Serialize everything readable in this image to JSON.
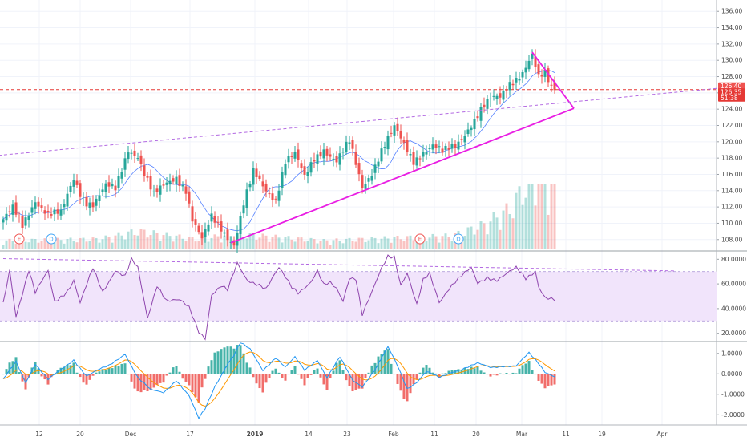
{
  "colors": {
    "up": "#26a69a",
    "down": "#ef5350",
    "trendline": "#e91ee3",
    "dashed": "#b36ae2",
    "rsi_line": "#8e44ad",
    "rsi_band": "#f1e4fb",
    "macd": "#2196f3",
    "signal": "#ff9800",
    "price_line": "#e53935",
    "earnings_badge": "#ef5350",
    "dividend_badge": "#42a5f5"
  },
  "chart_data": [
    {
      "type": "candlestick",
      "panel": "price",
      "y_ticks": [
        "136.00",
        "134.00",
        "132.00",
        "130.00",
        "128.00",
        "126.00",
        "124.00",
        "122.00",
        "120.00",
        "118.00",
        "116.00",
        "114.00",
        "112.00",
        "110.00",
        "108.00"
      ],
      "ylim": [
        106.6,
        137.4
      ],
      "x_ticks": [
        "12",
        "20",
        "Dec",
        "17",
        "2019",
        "14",
        "23",
        "Feb",
        "11",
        "20",
        "Mar",
        "11",
        "19",
        "Apr"
      ],
      "price_tags": [
        {
          "label": "126.40",
          "color": "#ef5350"
        },
        {
          "label": "126.35",
          "color": "#e53935"
        },
        {
          "label": "51:38",
          "color": "#e53935"
        }
      ],
      "price_line_value": 126.4,
      "events": [
        {
          "label": "E",
          "kind": "earnings",
          "x": 5
        },
        {
          "label": "D",
          "kind": "dividend",
          "x": 15
        },
        {
          "label": "E",
          "kind": "earnings",
          "x": 130
        },
        {
          "label": "D",
          "kind": "dividend",
          "x": 142
        }
      ],
      "trendlines": [
        {
          "style": "solid",
          "points": [
            [
              71,
              107.6
            ],
            [
              178,
              124.1
            ]
          ]
        },
        {
          "style": "solid",
          "points": [
            [
              165,
              131.0
            ],
            [
              178,
              124.1
            ]
          ]
        },
        {
          "style": "dashed",
          "points": [
            [
              -5,
              118.2
            ],
            [
              224,
              126.6
            ]
          ]
        }
      ],
      "n_bars": 173,
      "close_anchors": [
        [
          0,
          110.5
        ],
        [
          3,
          111.6
        ],
        [
          6,
          109.5
        ],
        [
          10,
          113.0
        ],
        [
          14,
          111.3
        ],
        [
          18,
          111.0
        ],
        [
          22,
          115.4
        ],
        [
          25,
          113.0
        ],
        [
          28,
          112.5
        ],
        [
          32,
          114.4
        ],
        [
          35,
          114.0
        ],
        [
          39,
          119.2
        ],
        [
          42,
          118.5
        ],
        [
          44,
          116.2
        ],
        [
          47,
          113.2
        ],
        [
          51,
          114.8
        ],
        [
          54,
          115.8
        ],
        [
          57,
          114.3
        ],
        [
          59,
          110.5
        ],
        [
          62,
          107.8
        ],
        [
          65,
          110.6
        ],
        [
          68,
          109.5
        ],
        [
          72,
          107.6
        ],
        [
          75,
          112.3
        ],
        [
          78,
          116.0
        ],
        [
          82,
          114.0
        ],
        [
          85,
          113.2
        ],
        [
          88,
          117.8
        ],
        [
          91,
          118.3
        ],
        [
          94,
          115.4
        ],
        [
          97,
          118.0
        ],
        [
          100,
          119.3
        ],
        [
          104,
          117.6
        ],
        [
          108,
          119.8
        ],
        [
          112,
          114.5
        ],
        [
          115,
          116.5
        ],
        [
          118,
          119.0
        ],
        [
          122,
          121.5
        ],
        [
          125,
          119.5
        ],
        [
          128,
          117.8
        ],
        [
          131,
          119.0
        ],
        [
          134,
          119.5
        ],
        [
          137,
          118.5
        ],
        [
          141,
          119.5
        ],
        [
          145,
          121.8
        ],
        [
          149,
          123.8
        ],
        [
          152,
          125.0
        ],
        [
          155,
          125.4
        ],
        [
          158,
          127.4
        ],
        [
          162,
          128.6
        ],
        [
          165,
          130.4
        ],
        [
          167,
          127.6
        ],
        [
          169,
          128.2
        ],
        [
          171,
          126.8
        ],
        [
          172,
          126.35
        ]
      ],
      "volume_anchors": [
        [
          0,
          1.0
        ],
        [
          30,
          1.2
        ],
        [
          42,
          2.2
        ],
        [
          60,
          1.2
        ],
        [
          73,
          1.8
        ],
        [
          100,
          1.0
        ],
        [
          140,
          1.6
        ],
        [
          150,
          3.0
        ],
        [
          158,
          5.0
        ],
        [
          164,
          8.5
        ],
        [
          168,
          9.0
        ],
        [
          172,
          8.5
        ]
      ]
    },
    {
      "type": "line",
      "panel": "rsi",
      "y_ticks": [
        "80.0000",
        "60.0000",
        "40.0000",
        "20.0000"
      ],
      "ylim": [
        13.3,
        86.7
      ],
      "band": [
        30,
        70
      ],
      "dashed_trendline": [
        [
          0,
          80.5
        ],
        [
          210,
          70.5
        ]
      ],
      "anchors": [
        [
          0,
          44
        ],
        [
          2,
          72
        ],
        [
          4,
          35
        ],
        [
          8,
          71
        ],
        [
          10,
          52
        ],
        [
          14,
          70
        ],
        [
          16,
          46
        ],
        [
          20,
          55
        ],
        [
          22,
          63
        ],
        [
          24,
          44
        ],
        [
          28,
          72
        ],
        [
          31,
          54
        ],
        [
          35,
          72
        ],
        [
          38,
          66
        ],
        [
          40,
          79
        ],
        [
          42,
          72
        ],
        [
          45,
          32
        ],
        [
          48,
          60
        ],
        [
          51,
          47
        ],
        [
          55,
          46
        ],
        [
          58,
          40
        ],
        [
          61,
          22
        ],
        [
          63,
          17
        ],
        [
          65,
          52
        ],
        [
          68,
          58
        ],
        [
          70,
          54
        ],
        [
          73,
          76
        ],
        [
          76,
          64
        ],
        [
          80,
          60
        ],
        [
          82,
          56
        ],
        [
          86,
          72
        ],
        [
          90,
          58
        ],
        [
          92,
          54
        ],
        [
          96,
          62
        ],
        [
          98,
          70
        ],
        [
          100,
          58
        ],
        [
          102,
          60
        ],
        [
          104,
          56
        ],
        [
          106,
          47
        ],
        [
          108,
          66
        ],
        [
          110,
          65
        ],
        [
          112,
          35
        ],
        [
          115,
          52
        ],
        [
          118,
          72
        ],
        [
          120,
          83
        ],
        [
          122,
          83
        ],
        [
          124,
          60
        ],
        [
          126,
          69
        ],
        [
          129,
          42
        ],
        [
          131,
          62
        ],
        [
          133,
          68
        ],
        [
          136,
          46
        ],
        [
          139,
          57
        ],
        [
          141,
          62
        ],
        [
          143,
          66
        ],
        [
          146,
          72
        ],
        [
          148,
          60
        ],
        [
          151,
          66
        ],
        [
          154,
          64
        ],
        [
          157,
          68
        ],
        [
          160,
          72
        ],
        [
          163,
          64
        ],
        [
          166,
          71
        ],
        [
          167,
          59
        ],
        [
          169,
          50
        ],
        [
          172,
          47
        ]
      ]
    },
    {
      "type": "histogram+lines",
      "panel": "macd",
      "y_ticks": [
        "1.0000",
        "0.0000",
        "-1.0000",
        "-2.0000"
      ],
      "ylim": [
        -2.5,
        1.58
      ],
      "macd_anchors": [
        [
          0,
          -0.3
        ],
        [
          4,
          0.6
        ],
        [
          7,
          -0.4
        ],
        [
          10,
          0.5
        ],
        [
          14,
          -0.3
        ],
        [
          18,
          0.2
        ],
        [
          22,
          0.7
        ],
        [
          26,
          -0.1
        ],
        [
          30,
          0.2
        ],
        [
          33,
          0.4
        ],
        [
          38,
          1.0
        ],
        [
          42,
          -0.2
        ],
        [
          46,
          -0.8
        ],
        [
          50,
          -0.9
        ],
        [
          54,
          -0.3
        ],
        [
          58,
          -1.1
        ],
        [
          61,
          -2.2
        ],
        [
          63,
          -1.7
        ],
        [
          66,
          -0.6
        ],
        [
          70,
          0.5
        ],
        [
          72,
          0.9
        ],
        [
          74,
          1.5
        ],
        [
          77,
          1.2
        ],
        [
          81,
          0.2
        ],
        [
          85,
          0.8
        ],
        [
          88,
          0.3
        ],
        [
          91,
          0.8
        ],
        [
          94,
          0.2
        ],
        [
          98,
          0.7
        ],
        [
          101,
          -0.2
        ],
        [
          105,
          0.8
        ],
        [
          109,
          -0.3
        ],
        [
          112,
          -0.6
        ],
        [
          116,
          0.2
        ],
        [
          120,
          1.3
        ],
        [
          123,
          0.4
        ],
        [
          126,
          -0.7
        ],
        [
          129,
          -0.4
        ],
        [
          132,
          0.1
        ],
        [
          136,
          -0.2
        ],
        [
          140,
          0.1
        ],
        [
          144,
          0.3
        ],
        [
          148,
          0.5
        ],
        [
          152,
          0.3
        ],
        [
          156,
          0.4
        ],
        [
          160,
          0.4
        ],
        [
          164,
          1.0
        ],
        [
          167,
          0.5
        ],
        [
          169,
          0.1
        ],
        [
          172,
          -0.1
        ]
      ]
    }
  ]
}
